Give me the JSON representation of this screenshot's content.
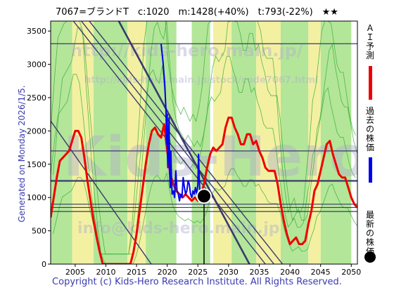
{
  "header": {
    "title": "7067=ブランドT　c:1020　m:1428(+40%)　t:793(-22%)　★★"
  },
  "side_label": "Generated on Monday 2026/1/5.",
  "copyright": "Copyright (c) Kids-Hero Research Institute. All Rights Reserved.",
  "watermark": {
    "url1": "http://kids-hero.main.jp/",
    "url2": "http://kids-hero.main.jp/stock/code7067.html",
    "big": "Kids-Hero",
    "lower": "info@kids-hero.main.jp"
  },
  "legend": [
    {
      "label": "ＡＩ予測",
      "color": "#ee0000"
    },
    {
      "label": "過去の株価",
      "color": "#0000ee"
    },
    {
      "label": "最新の株価",
      "color": "#000000"
    }
  ],
  "colors": {
    "forecast": "#ee0000",
    "past": "#0000ee",
    "current": "#000000",
    "envelope_fill": "#99dd77",
    "envelope_line": "#33aa33",
    "yellow_band": "#f3f0a2",
    "trend_line": "#3a3a6e"
  },
  "chart_data": {
    "type": "line",
    "title": "7067=ブランドT　c:1020　m:1428(+40%)　t:793(-22%)　★★",
    "xlabel": "",
    "ylabel": "",
    "xlim": [
      2001.0,
      2051.0
    ],
    "ylim": [
      0,
      3650
    ],
    "x_ticks": [
      2005,
      2010,
      2015,
      2020,
      2025,
      2030,
      2035,
      2040,
      2045,
      2050
    ],
    "y_ticks": [
      0,
      500,
      1000,
      1500,
      2000,
      2500,
      3000,
      3500
    ],
    "grid": false,
    "current": {
      "x": 2026.0,
      "y": 1020
    },
    "annotations": {
      "c": 1020,
      "m": 1428,
      "m_pct": "+40%",
      "t": 793,
      "t_pct": "-22%",
      "rating": "★★"
    },
    "horizontal_lines": [
      3310,
      1700,
      1250,
      900,
      850,
      790
    ],
    "trend_lines": [
      {
        "x": [
          2004.7,
          2036.0
        ],
        "y": [
          3650,
          0
        ]
      },
      {
        "x": [
          2006.0,
          2037.4
        ],
        "y": [
          3650,
          0
        ]
      },
      {
        "x": [
          2007.3,
          2038.8
        ],
        "y": [
          3650,
          0
        ]
      },
      {
        "x": [
          2001.0,
          2017.4
        ],
        "y": [
          2150,
          0
        ]
      },
      {
        "x": [
          2012.1,
          2033.4
        ],
        "y": [
          3650,
          0
        ]
      }
    ],
    "green_bands": [
      [
        2001.0,
        2004.5
      ],
      [
        2008.0,
        2013.5
      ],
      [
        2016.5,
        2021.5
      ],
      [
        2024.0,
        2027.0
      ],
      [
        2029.0,
        2034.5
      ],
      [
        2038.5,
        2043.0
      ],
      [
        2045.0,
        2050.0
      ]
    ],
    "yellow_bands": [
      [
        2004.5,
        2008.0
      ],
      [
        2013.5,
        2016.5
      ],
      [
        2027.5,
        2030.5
      ],
      [
        2034.5,
        2038.5
      ],
      [
        2043.0,
        2045.0
      ]
    ],
    "series": [
      {
        "name": "ＡＩ予測",
        "color": "#ee0000",
        "x": [
          2001.0,
          2001.5,
          2002.0,
          2002.5,
          2003.0,
          2003.5,
          2004.0,
          2004.5,
          2005.0,
          2005.5,
          2006.0,
          2006.5,
          2007.0,
          2007.5,
          2008.0,
          2008.5,
          2009.0,
          2009.5,
          2010.0,
          2010.5,
          2011.0,
          2011.5,
          2012.0,
          2012.5,
          2013.0,
          2013.5,
          2014.0,
          2014.5,
          2015.0,
          2015.5,
          2016.0,
          2016.5,
          2017.0,
          2017.5,
          2018.0,
          2018.5,
          2019.0,
          2019.5,
          2020.0,
          2020.5,
          2021.0,
          2021.5,
          2022.0,
          2022.5,
          2023.0,
          2023.5,
          2024.0,
          2024.5,
          2025.0,
          2025.5,
          2026.0,
          2026.5,
          2027.0,
          2027.5,
          2028.0,
          2028.5,
          2029.0,
          2029.5,
          2030.0,
          2030.5,
          2031.0,
          2031.5,
          2032.0,
          2032.5,
          2033.0,
          2033.5,
          2034.0,
          2034.5,
          2035.0,
          2035.5,
          2036.0,
          2036.5,
          2037.0,
          2037.5,
          2038.0,
          2038.5,
          2039.0,
          2039.5,
          2040.0,
          2040.5,
          2041.0,
          2041.5,
          2042.0,
          2042.5,
          2043.0,
          2043.5,
          2044.0,
          2044.5,
          2045.0,
          2045.5,
          2046.0,
          2046.5,
          2047.0,
          2047.5,
          2048.0,
          2048.5,
          2049.0,
          2049.5,
          2050.0,
          2050.5,
          2051.0
        ],
        "values": [
          700,
          1000,
          1300,
          1550,
          1600,
          1650,
          1700,
          1850,
          2000,
          2000,
          1900,
          1600,
          1250,
          950,
          650,
          400,
          180,
          0,
          0,
          0,
          0,
          0,
          0,
          0,
          0,
          0,
          0,
          180,
          450,
          800,
          1150,
          1500,
          1800,
          2000,
          2050,
          1950,
          1900,
          2100,
          1700,
          1350,
          1200,
          1100,
          1050,
          1000,
          1050,
          1000,
          950,
          1000,
          950,
          1050,
          1200,
          1450,
          1650,
          1750,
          1700,
          1750,
          1800,
          2050,
          2200,
          2200,
          2050,
          1950,
          1800,
          1800,
          1950,
          1950,
          1800,
          1850,
          1700,
          1600,
          1450,
          1400,
          1400,
          1400,
          1200,
          900,
          650,
          450,
          300,
          350,
          400,
          300,
          300,
          350,
          600,
          800,
          1100,
          1200,
          1400,
          1600,
          1800,
          1850,
          1650,
          1500,
          1350,
          1300,
          1300,
          1150,
          1000,
          900,
          850
        ]
      },
      {
        "name": "過去の株価",
        "color": "#0000ee",
        "x": [
          2019.0,
          2019.3,
          2019.6,
          2019.8,
          2019.9,
          2020.0,
          2020.05,
          2020.1,
          2020.2,
          2020.3,
          2020.35,
          2020.4,
          2020.5,
          2020.6,
          2020.7,
          2020.8,
          2021.0,
          2021.2,
          2021.4,
          2021.6,
          2021.8,
          2022.0,
          2022.2,
          2022.4,
          2022.6,
          2022.8,
          2023.0,
          2023.2,
          2023.4,
          2023.6,
          2023.8,
          2024.0,
          2024.2,
          2024.4,
          2024.6,
          2024.8,
          2025.0,
          2025.1,
          2025.2,
          2025.3,
          2025.4,
          2025.6,
          2025.8,
          2026.0
        ],
        "values": [
          3310,
          3050,
          2700,
          2300,
          1800,
          2250,
          1600,
          1450,
          1700,
          2200,
          1800,
          1350,
          1150,
          1700,
          1250,
          1050,
          1100,
          1000,
          1400,
          1100,
          1050,
          950,
          1050,
          1000,
          1300,
          1150,
          1050,
          1100,
          1250,
          1200,
          1050,
          1000,
          1100,
          1050,
          1150,
          1050,
          1200,
          1650,
          1350,
          1100,
          1100,
          1050,
          1000,
          1020
        ]
      }
    ]
  }
}
